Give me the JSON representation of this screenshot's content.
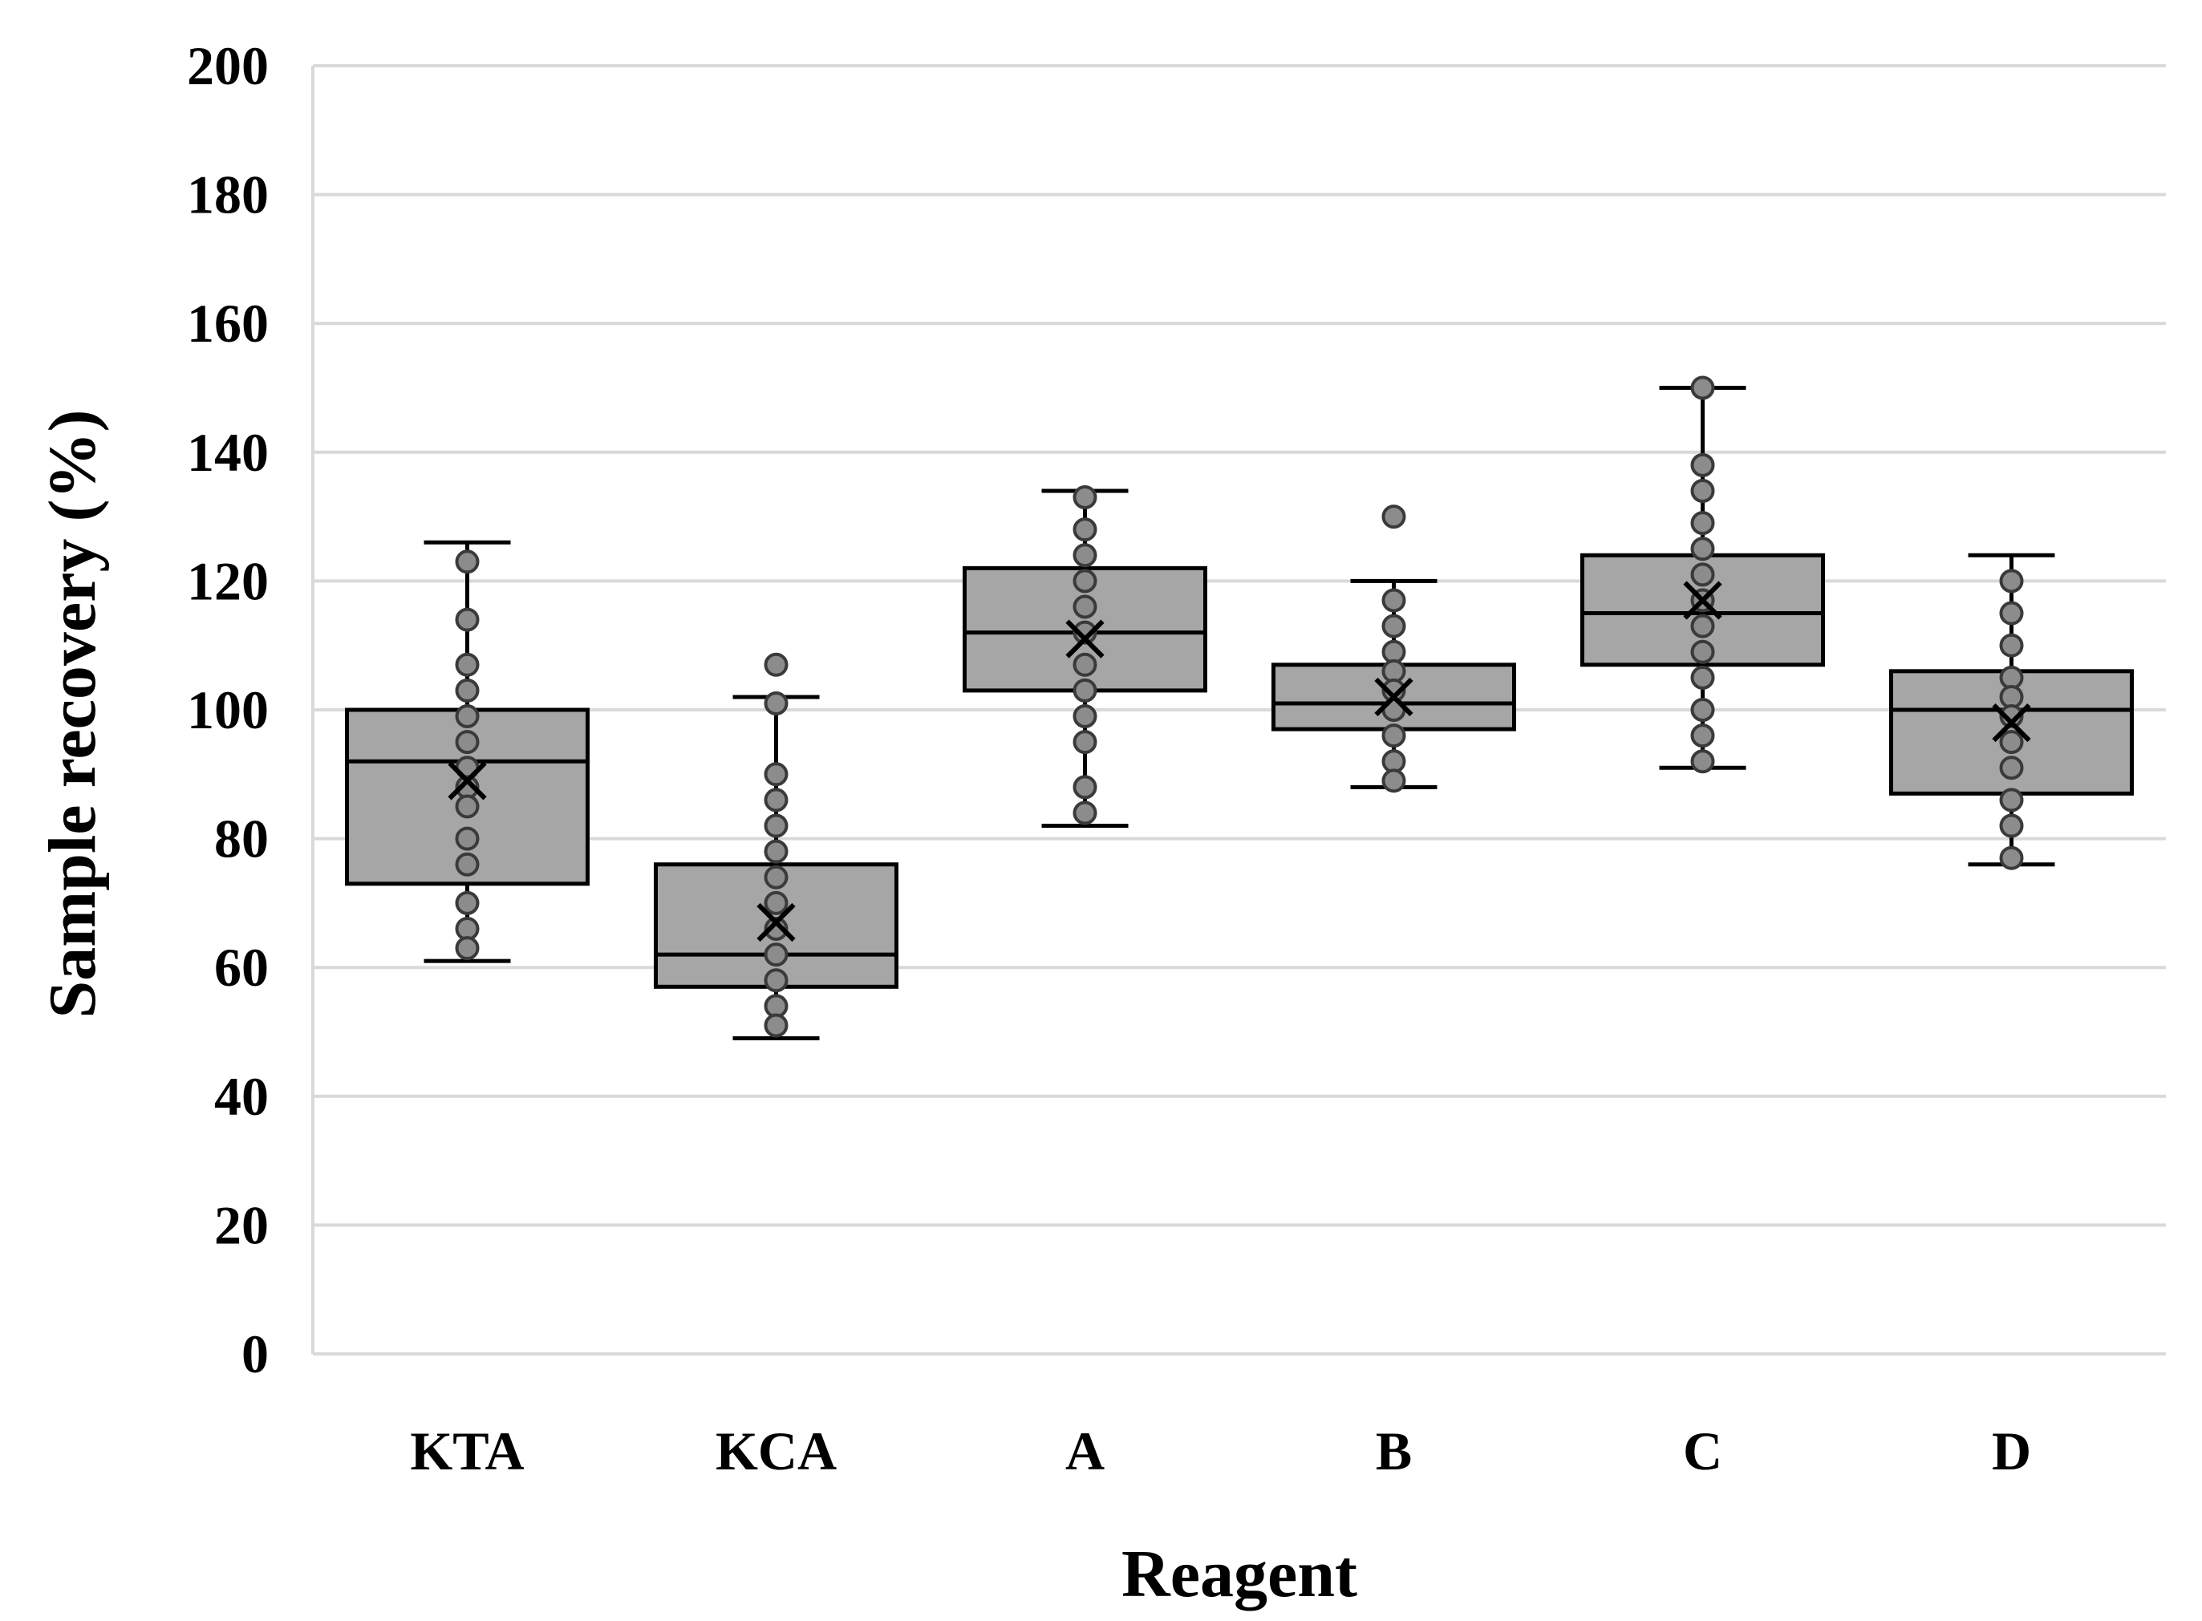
{
  "chart_data": {
    "type": "box",
    "title": "",
    "xlabel": "Reagent",
    "ylabel": "Sample recovery (%)",
    "ylim": [
      0,
      200
    ],
    "yticks": [
      0,
      20,
      40,
      60,
      80,
      100,
      120,
      140,
      160,
      180,
      200
    ],
    "grid": true,
    "categories": [
      "KTA",
      "KCA",
      "A",
      "B",
      "C",
      "D"
    ],
    "series": [
      {
        "name": "KTA",
        "min": 61,
        "q1": 73,
        "median": 92,
        "q3": 100,
        "max": 126,
        "mean": 89,
        "points": [
          123,
          114,
          107,
          103,
          99,
          95,
          91,
          88,
          85,
          80,
          76,
          70,
          66,
          63
        ],
        "outliers": []
      },
      {
        "name": "KCA",
        "min": 49,
        "q1": 57,
        "median": 62,
        "q3": 76,
        "max": 102,
        "mean": 67,
        "points": [
          101,
          90,
          86,
          82,
          78,
          74,
          70,
          66,
          62,
          58,
          54,
          51
        ],
        "outliers": [
          107
        ]
      },
      {
        "name": "A",
        "min": 82,
        "q1": 103,
        "median": 112,
        "q3": 122,
        "max": 134,
        "mean": 111,
        "points": [
          133,
          128,
          124,
          120,
          116,
          112,
          107,
          103,
          99,
          95,
          88,
          84
        ],
        "outliers": []
      },
      {
        "name": "B",
        "min": 88,
        "q1": 97,
        "median": 101,
        "q3": 107,
        "max": 120,
        "mean": 102,
        "points": [
          117,
          113,
          109,
          106,
          103,
          100,
          96,
          92,
          89
        ],
        "outliers": [
          130
        ]
      },
      {
        "name": "C",
        "min": 91,
        "q1": 107,
        "median": 115,
        "q3": 124,
        "max": 150,
        "mean": 117,
        "points": [
          150,
          138,
          134,
          129,
          125,
          121,
          117,
          113,
          109,
          105,
          100,
          96,
          92
        ],
        "outliers": []
      },
      {
        "name": "D",
        "min": 76,
        "q1": 87,
        "median": 100,
        "q3": 106,
        "max": 124,
        "mean": 98,
        "points": [
          120,
          115,
          110,
          105,
          102,
          99,
          95,
          91,
          86,
          82,
          77
        ],
        "outliers": []
      }
    ]
  },
  "colors": {
    "box_fill": "#a6a6a6",
    "point_fill": "#8c8c8c",
    "grid": "#d9d9d9",
    "line": "#000000"
  }
}
